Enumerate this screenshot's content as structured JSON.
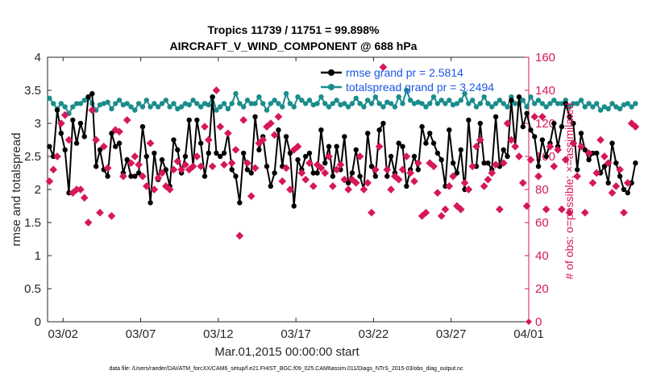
{
  "colors": {
    "rmse": "#000000",
    "spread": "#1a8c8c",
    "obs": "#d6185a",
    "legend_text": "#1a56e6",
    "axis": "#262626"
  },
  "title_line1": "Tropics 11739 / 11751 = 99.898%",
  "title_line2": "AIRCRAFT_V_WIND_COMPONENT @ 688 hPa",
  "footnote": "data file: /Users/raeder/DAI/ATM_forcXX/CAM6_setup/f.e21.FHIST_BGC.f09_025.CAM6assim.011/Diags_NTrS_2015-03/obs_diag_output.nc",
  "chart_data": {
    "type": "line",
    "title": "Tropics 11739 / 11751 = 99.898%  AIRCRAFT_V_WIND_COMPONENT @ 688 hPa",
    "xlabel": "Mar.01,2015 00:00:00 start",
    "ylabel": "rmse and totalspread",
    "ylabel_right": "# of obs: o=possible; ×=assimilated",
    "xlim": [
      0,
      31
    ],
    "ylim": [
      0,
      4
    ],
    "ylim_right": [
      0,
      160
    ],
    "xticks": [
      1,
      6,
      11,
      16,
      21,
      26,
      31
    ],
    "xtick_labels": [
      "03/02",
      "03/07",
      "03/12",
      "03/17",
      "03/22",
      "03/27",
      "04/01"
    ],
    "yticks": [
      0,
      0.5,
      1,
      1.5,
      2,
      2.5,
      3,
      3.5,
      4
    ],
    "ytick_labels": [
      "0",
      "0.5",
      "1",
      "1.5",
      "2",
      "2.5",
      "3",
      "3.5",
      "4"
    ],
    "yticks_right": [
      0,
      20,
      40,
      60,
      80,
      100,
      120,
      140,
      160
    ],
    "ytick_labels_right": [
      "0",
      "20",
      "40",
      "60",
      "80",
      "100",
      "120",
      "140",
      "160"
    ],
    "legend": [
      "rmse grand pr = 2.5814",
      "totalspread grand pr = 3.2494"
    ],
    "legend_position": "top-right",
    "x_step_days": 0.25,
    "series": [
      {
        "name": "rmse",
        "axis": "left",
        "values": [
          2.65,
          2.5,
          3.2,
          2.85,
          2.6,
          1.95,
          3.05,
          2.7,
          3.0,
          2.8,
          3.4,
          3.45,
          2.35,
          2.6,
          2.3,
          2.2,
          2.85,
          2.65,
          2.7,
          2.25,
          2.45,
          2.2,
          2.2,
          2.25,
          2.95,
          2.5,
          1.8,
          2.55,
          2.15,
          2.45,
          2.3,
          2.05,
          2.75,
          2.6,
          2.25,
          2.5,
          3.05,
          2.35,
          3.05,
          2.7,
          2.2,
          2.55,
          3.4,
          2.55,
          2.5,
          2.55,
          2.85,
          2.3,
          2.2,
          1.8,
          2.55,
          2.3,
          2.25,
          3.1,
          2.6,
          2.8,
          2.35,
          2.05,
          2.25,
          2.9,
          2.35,
          2.8,
          2.55,
          1.75,
          2.45,
          2.3,
          2.5,
          2.55,
          2.25,
          2.25,
          2.9,
          2.4,
          2.65,
          2.2,
          2.65,
          2.3,
          2.8,
          2.1,
          2.25,
          2.6,
          2.2,
          2.0,
          2.85,
          2.35,
          2.2,
          2.9,
          3.0,
          2.2,
          2.5,
          2.25,
          2.7,
          2.65,
          2.05,
          2.3,
          2.5,
          2.3,
          2.95,
          2.7,
          2.85,
          2.7,
          2.55,
          2.45,
          2.05,
          2.9,
          2.4,
          2.25,
          2.6,
          2.0,
          3.05,
          2.35,
          2.35,
          3.0,
          2.4,
          2.4,
          2.3,
          3.1,
          2.35,
          2.6,
          2.5,
          3.35,
          2.65,
          3.4,
          2.95,
          3.15,
          2.9,
          2.8,
          2.35,
          2.75,
          2.5,
          2.7,
          3.0,
          2.65,
          2.95,
          3.3,
          3.1,
          3.0,
          2.3,
          2.85,
          2.6,
          2.45,
          2.55,
          2.55,
          2.25,
          2.35,
          2.1,
          2.7,
          2.4,
          2.2,
          2.0,
          1.95,
          2.1,
          2.4
        ]
      },
      {
        "name": "totalspread",
        "axis": "left",
        "values": [
          3.38,
          3.3,
          3.22,
          3.3,
          3.25,
          3.15,
          3.25,
          3.3,
          3.3,
          3.35,
          3.4,
          3.3,
          3.2,
          3.28,
          3.3,
          3.32,
          3.22,
          3.3,
          3.35,
          3.28,
          3.3,
          3.25,
          3.2,
          3.3,
          3.25,
          3.35,
          3.25,
          3.3,
          3.25,
          3.3,
          3.35,
          3.25,
          3.3,
          3.22,
          3.25,
          3.3,
          3.28,
          3.35,
          3.3,
          3.25,
          3.3,
          3.28,
          3.4,
          3.2,
          3.25,
          3.3,
          3.22,
          3.3,
          3.45,
          3.3,
          3.25,
          3.35,
          3.3,
          3.3,
          3.4,
          3.3,
          3.2,
          3.3,
          3.35,
          3.3,
          3.25,
          3.45,
          3.3,
          3.25,
          3.4,
          3.35,
          3.3,
          3.35,
          3.28,
          3.3,
          3.4,
          3.3,
          3.25,
          3.3,
          3.35,
          3.28,
          3.3,
          3.25,
          3.3,
          3.38,
          3.3,
          3.25,
          3.35,
          3.3,
          3.4,
          3.3,
          3.25,
          3.32,
          3.3,
          3.25,
          3.4,
          3.3,
          3.5,
          3.35,
          3.3,
          3.32,
          3.3,
          3.25,
          3.3,
          3.4,
          3.3,
          3.35,
          3.3,
          3.35,
          3.28,
          3.3,
          3.35,
          3.45,
          3.3,
          3.35,
          3.25,
          3.3,
          3.4,
          3.3,
          3.25,
          3.3,
          3.35,
          3.3,
          3.25,
          3.4,
          3.3,
          3.3,
          3.35,
          3.25,
          3.4,
          3.3,
          3.35,
          3.3,
          3.25,
          3.3,
          3.35,
          3.3,
          3.3,
          3.35,
          3.25,
          3.3,
          3.3,
          3.35,
          3.25,
          3.3,
          3.25,
          3.3,
          3.2,
          3.25,
          3.22,
          3.3,
          3.25,
          3.22,
          3.28,
          3.3,
          3.25,
          3.3
        ]
      },
      {
        "name": "obs_possible",
        "axis": "right",
        "values": [
          85,
          92,
          100,
          120,
          125,
          110,
          78,
          80,
          80,
          75,
          60,
          128,
          110,
          66,
          106,
          93,
          64,
          116,
          115,
          88,
          122,
          96,
          100,
          95,
          88,
          82,
          108,
          80,
          87,
          90,
          82,
          80,
          92,
          97,
          92,
          95,
          92,
          94,
          100,
          94,
          118,
          110,
          94,
          140,
          118,
          95,
          114,
          96,
          104,
          52,
          122,
          96,
          76,
          93,
          108,
          110,
          118,
          120,
          113,
          124,
          85,
          93,
          80,
          104,
          106,
          90,
          86,
          96,
          82,
          95,
          93,
          90,
          100,
          82,
          92,
          95,
          86,
          80,
          86,
          84,
          100,
          80,
          84,
          66,
          92,
          106,
          154,
          92,
          80,
          88,
          86,
          92,
          100,
          90,
          85,
          96,
          64,
          66,
          96,
          94,
          78,
          64,
          68,
          82,
          88,
          70,
          68,
          84,
          80,
          94,
          106,
          110,
          82,
          86,
          90,
          95,
          68,
          96,
          120,
          110,
          106,
          100,
          84,
          70,
          98,
          124,
          88,
          124,
          68,
          106,
          94,
          104,
          68,
          98,
          66,
          108,
          88,
          106,
          66,
          102,
          84,
          90,
          110,
          100,
          96,
          78,
          82,
          92,
          66,
          84,
          120,
          118
        ]
      }
    ]
  }
}
